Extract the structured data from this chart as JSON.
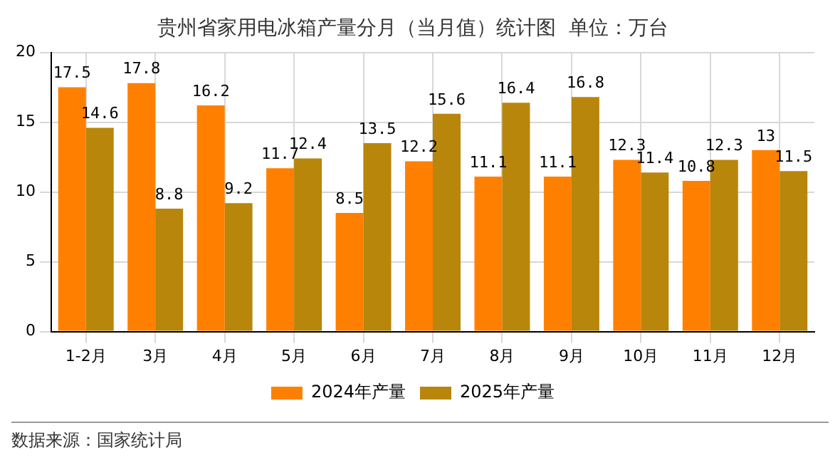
{
  "chart_data": {
    "type": "bar",
    "title": "贵州省家用电冰箱产量分月（当月值）统计图  单位：万台",
    "categories": [
      "1-2月",
      "3月",
      "4月",
      "5月",
      "6月",
      "7月",
      "8月",
      "9月",
      "10月",
      "11月",
      "12月"
    ],
    "series": [
      {
        "name": "2024年产量",
        "color": "#ff8000",
        "values": [
          17.5,
          17.8,
          16.2,
          11.7,
          8.5,
          12.2,
          11.1,
          11.1,
          12.3,
          10.8,
          13
        ]
      },
      {
        "name": "2025年产量",
        "color": "#b8860b",
        "values": [
          14.6,
          8.8,
          9.2,
          12.4,
          13.5,
          15.6,
          16.4,
          16.8,
          11.4,
          12.3,
          11.5
        ]
      }
    ],
    "ylim": [
      0,
      20
    ],
    "yticks": [
      0,
      5,
      10,
      15,
      20
    ],
    "grid": true,
    "legend": "bottom",
    "data_labels": true,
    "annotations": [
      "数据来源：国家统计局"
    ]
  }
}
